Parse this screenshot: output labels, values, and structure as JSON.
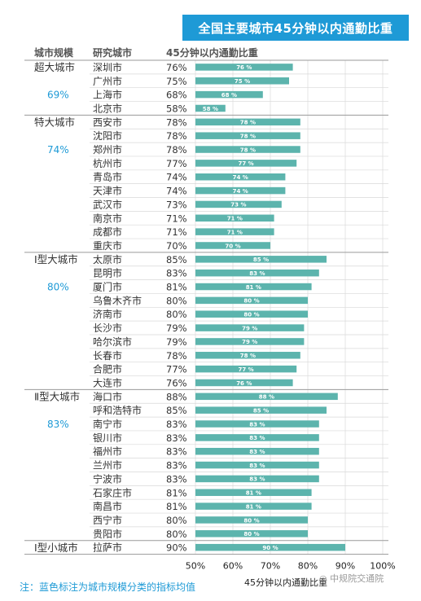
{
  "title": "全国主要城市45分钟以内通勤比重",
  "headers": {
    "scale": "城市规模",
    "city": "研究城市",
    "share": "45分钟以内通勤比重"
  },
  "footnote": "注：蓝色标注为城市规模分类的指标均值",
  "watermark": "中规院交通院",
  "colors": {
    "bar": "#5cb4ad",
    "accent": "#1e9ad6",
    "title_bg": "#1e9ad6"
  },
  "chart_data": {
    "type": "bar",
    "orientation": "horizontal",
    "xlabel": "45分钟以内通勤比重",
    "xlim": [
      0.5,
      1.0
    ],
    "xticks": [
      "50%",
      "60%",
      "70%",
      "80%",
      "90%",
      "100%"
    ],
    "grid": true,
    "groups": [
      {
        "name": "超大城市",
        "mean": "69%",
        "cities": [
          {
            "city": "深圳市",
            "value": 76,
            "label": "76%",
            "bar_label": "76 %"
          },
          {
            "city": "广州市",
            "value": 75,
            "label": "75%",
            "bar_label": "75 %"
          },
          {
            "city": "上海市",
            "value": 68,
            "label": "68%",
            "bar_label": "68 %"
          },
          {
            "city": "北京市",
            "value": 58,
            "label": "58%",
            "bar_label": "58 %"
          }
        ]
      },
      {
        "name": "特大城市",
        "mean": "74%",
        "cities": [
          {
            "city": "西安市",
            "value": 78,
            "label": "78%",
            "bar_label": "78 %"
          },
          {
            "city": "沈阳市",
            "value": 78,
            "label": "78%",
            "bar_label": "78 %"
          },
          {
            "city": "郑州市",
            "value": 78,
            "label": "78%",
            "bar_label": "78 %"
          },
          {
            "city": "杭州市",
            "value": 77,
            "label": "77%",
            "bar_label": "77 %"
          },
          {
            "city": "青岛市",
            "value": 74,
            "label": "74%",
            "bar_label": "74 %"
          },
          {
            "city": "天津市",
            "value": 74,
            "label": "74%",
            "bar_label": "74 %"
          },
          {
            "city": "武汉市",
            "value": 73,
            "label": "73%",
            "bar_label": "73 %"
          },
          {
            "city": "南京市",
            "value": 71,
            "label": "71%",
            "bar_label": "71 %"
          },
          {
            "city": "成都市",
            "value": 71,
            "label": "71%",
            "bar_label": "71 %"
          },
          {
            "city": "重庆市",
            "value": 70,
            "label": "70%",
            "bar_label": "70 %"
          }
        ]
      },
      {
        "name": "Ⅰ型大城市",
        "mean": "80%",
        "cities": [
          {
            "city": "太原市",
            "value": 85,
            "label": "85%",
            "bar_label": "85 %"
          },
          {
            "city": "昆明市",
            "value": 83,
            "label": "83%",
            "bar_label": "83 %"
          },
          {
            "city": "厦门市",
            "value": 81,
            "label": "81%",
            "bar_label": "81 %"
          },
          {
            "city": "乌鲁木齐市",
            "value": 80,
            "label": "80%",
            "bar_label": "80 %"
          },
          {
            "city": "济南市",
            "value": 80,
            "label": "80%",
            "bar_label": "80 %"
          },
          {
            "city": "长沙市",
            "value": 79,
            "label": "79%",
            "bar_label": "79 %"
          },
          {
            "city": "哈尔滨市",
            "value": 79,
            "label": "79%",
            "bar_label": "79 %"
          },
          {
            "city": "长春市",
            "value": 78,
            "label": "78%",
            "bar_label": "78 %"
          },
          {
            "city": "合肥市",
            "value": 77,
            "label": "77%",
            "bar_label": "77 %"
          },
          {
            "city": "大连市",
            "value": 76,
            "label": "76%",
            "bar_label": "76 %"
          }
        ]
      },
      {
        "name": "Ⅱ型大城市",
        "mean": "83%",
        "cities": [
          {
            "city": "海口市",
            "value": 88,
            "label": "88%",
            "bar_label": "88 %"
          },
          {
            "city": "呼和浩特市",
            "value": 85,
            "label": "85%",
            "bar_label": "85 %"
          },
          {
            "city": "南宁市",
            "value": 83,
            "label": "83%",
            "bar_label": "83 %"
          },
          {
            "city": "银川市",
            "value": 83,
            "label": "83%",
            "bar_label": "83 %"
          },
          {
            "city": "福州市",
            "value": 83,
            "label": "83%",
            "bar_label": "83 %"
          },
          {
            "city": "兰州市",
            "value": 83,
            "label": "83%",
            "bar_label": "83 %"
          },
          {
            "city": "宁波市",
            "value": 83,
            "label": "83%",
            "bar_label": "83 %"
          },
          {
            "city": "石家庄市",
            "value": 81,
            "label": "81%",
            "bar_label": "81 %"
          },
          {
            "city": "南昌市",
            "value": 81,
            "label": "81%",
            "bar_label": "81 %"
          },
          {
            "city": "西宁市",
            "value": 80,
            "label": "80%",
            "bar_label": "80 %"
          },
          {
            "city": "贵阳市",
            "value": 80,
            "label": "80%",
            "bar_label": "80 %"
          }
        ]
      },
      {
        "name": "Ⅰ型小城市",
        "mean": "",
        "cities": [
          {
            "city": "拉萨市",
            "value": 90,
            "label": "90%",
            "bar_label": "90 %"
          }
        ]
      }
    ]
  }
}
